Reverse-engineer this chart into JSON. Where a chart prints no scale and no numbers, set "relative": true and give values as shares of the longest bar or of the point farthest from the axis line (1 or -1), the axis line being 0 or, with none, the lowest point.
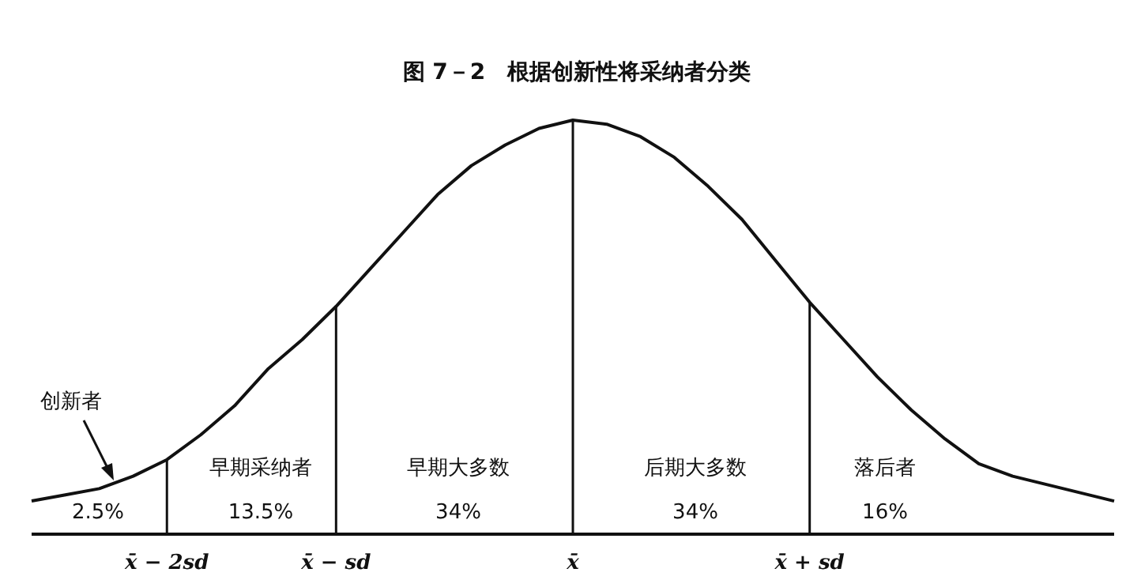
{
  "chart_data": {
    "type": "line",
    "title": "图 7－2　根据创新性将采纳者分类",
    "relative": true,
    "categories": [
      null,
      null,
      null,
      null,
      "x̄ − 2sd",
      null,
      null,
      null,
      null,
      "x̄ − sd",
      null,
      null,
      null,
      null,
      null,
      null,
      "x̄",
      null,
      null,
      null,
      null,
      null,
      null,
      "x̄ + sd",
      null,
      null,
      null,
      null,
      null,
      null,
      null,
      null,
      null
    ],
    "series": [
      {
        "color": "#111111",
        "values": [
          0.08,
          0.095,
          0.11,
          0.14,
          0.18,
          0.24,
          0.31,
          0.4,
          0.47,
          0.55,
          0.64,
          0.73,
          0.82,
          0.89,
          0.94,
          0.98,
          1,
          0.99,
          0.96,
          0.91,
          0.84,
          0.76,
          0.66,
          0.56,
          0.47,
          0.38,
          0.3,
          0.23,
          0.17,
          0.14,
          0.12,
          0.1,
          0.08
        ]
      }
    ],
    "ref_lines": [
      {
        "axis": "x",
        "value": "x̄ − 2sd",
        "color": "#111111"
      },
      {
        "axis": "x",
        "value": "x̄ − sd",
        "color": "#111111"
      },
      {
        "axis": "x",
        "value": "x̄",
        "color": "#111111"
      },
      {
        "axis": "x",
        "value": "x̄ + sd",
        "color": "#111111"
      }
    ],
    "annotations": [
      "创新者",
      "2.5%",
      "早期采纳者",
      "13.5%",
      "早期大多数",
      "34%",
      "后期大多数",
      "34%",
      "落后者",
      "16%"
    ]
  }
}
